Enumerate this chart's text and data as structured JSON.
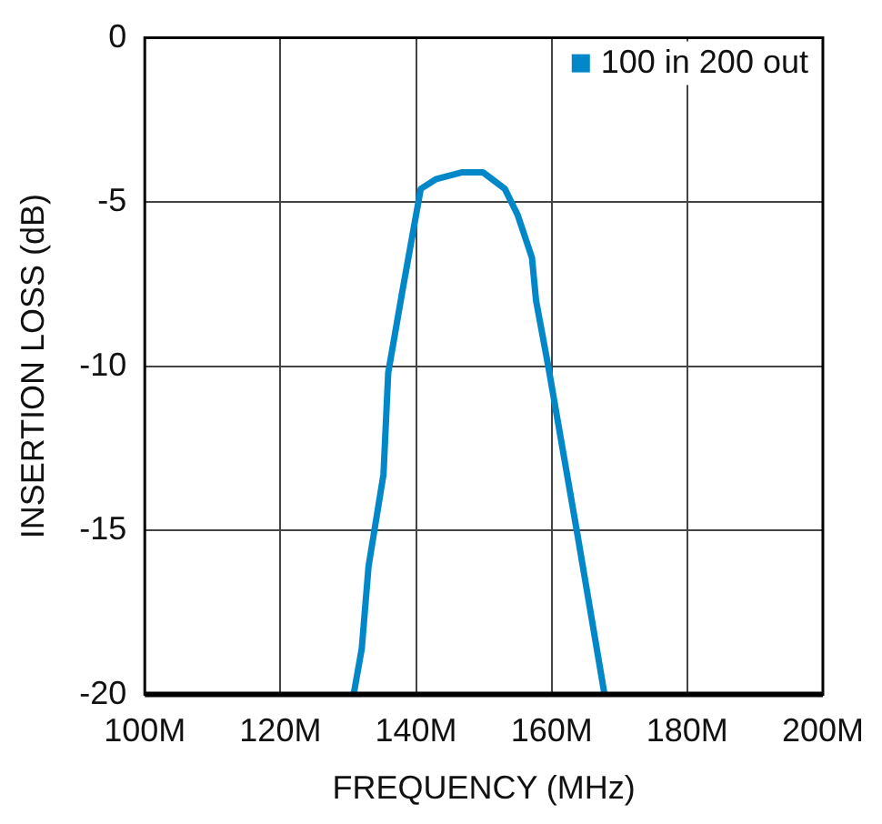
{
  "chart_data": {
    "type": "line",
    "xlabel": "FREQUENCY (MHz)",
    "ylabel": "INSERTION LOSS (dB)",
    "xlim": [
      100,
      200
    ],
    "ylim": [
      -20,
      0
    ],
    "xticks": [
      {
        "value": 100,
        "label": "100M"
      },
      {
        "value": 120,
        "label": "120M"
      },
      {
        "value": 140,
        "label": "140M"
      },
      {
        "value": 160,
        "label": "160M"
      },
      {
        "value": 180,
        "label": "180M"
      },
      {
        "value": 200,
        "label": "200M"
      }
    ],
    "yticks": [
      -20,
      -15,
      -10,
      -5,
      0
    ],
    "grid": true,
    "legend": "top right",
    "marker": "none",
    "line_style": "solid",
    "series": [
      {
        "name": "100 in 200 out",
        "color": "#0288c8",
        "x": [
          130.8,
          132.0,
          133.0,
          135.2,
          135.9,
          138.0,
          140.7,
          143.0,
          146.7,
          149.9,
          153.1,
          155.0,
          157.1,
          157.7,
          159.5,
          163.7,
          167.8
        ],
        "values": [
          -20,
          -18.6,
          -16.1,
          -13.3,
          -10.2,
          -7.7,
          -4.6,
          -4.3,
          -4.1,
          -4.1,
          -4.6,
          -5.4,
          -6.7,
          -8.0,
          -10,
          -15,
          -20
        ]
      }
    ]
  }
}
